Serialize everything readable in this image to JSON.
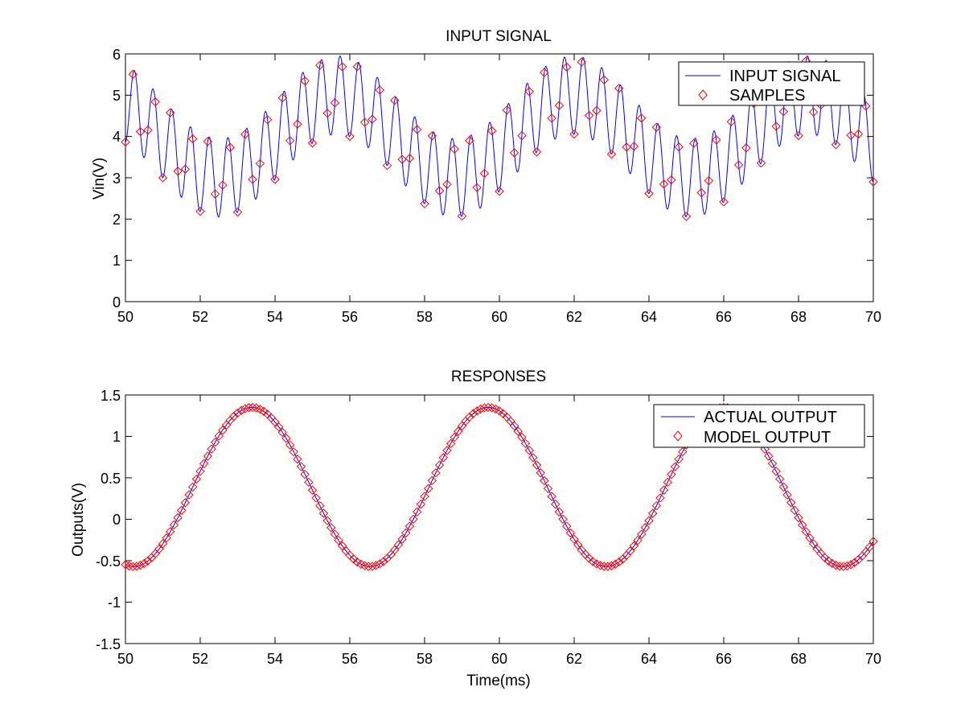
{
  "colors": {
    "line": "#0000ff",
    "marker": "#ff0000",
    "axes": "#000000",
    "background": "#ffffff"
  },
  "icons": {
    "line": "legend-line-icon",
    "marker": "diamond-marker-icon"
  },
  "chart_data": [
    {
      "type": "line",
      "title": "INPUT SIGNAL",
      "xlabel": "",
      "ylabel": "Vin(V)",
      "xlim": [
        50,
        70
      ],
      "ylim": [
        0,
        6
      ],
      "xticks": [
        "50",
        "52",
        "54",
        "56",
        "58",
        "60",
        "62",
        "64",
        "66",
        "68",
        "70"
      ],
      "yticks": [
        "0",
        "1",
        "2",
        "3",
        "4",
        "5",
        "6"
      ],
      "legend": {
        "position": "top-right",
        "entries": [
          "INPUT SIGNAL",
          "SAMPLES"
        ]
      },
      "series": [
        {
          "name": "INPUT SIGNAL",
          "style": "line",
          "model": "offset + a1*sin(2*pi*(t-50)/p1 + ph1) + a2*sin(2*pi*(t-50)/p2 + ph2)",
          "offset": 4.0,
          "a1": 1.0,
          "p1": 6.3,
          "ph1": 2.2,
          "a2": 0.95,
          "p2": 0.5,
          "ph2": -1.45
        },
        {
          "name": "SAMPLES",
          "style": "markers",
          "t_start": 50,
          "t_end": 70,
          "t_step": 0.2
        }
      ]
    },
    {
      "type": "line",
      "title": "RESPONSES",
      "xlabel": "Time(ms)",
      "ylabel": "Outputs(V)",
      "xlim": [
        50,
        70
      ],
      "ylim": [
        -1.5,
        1.5
      ],
      "xticks": [
        "50",
        "52",
        "54",
        "56",
        "58",
        "60",
        "62",
        "64",
        "66",
        "68",
        "70"
      ],
      "yticks": [
        "-1.5",
        "-1",
        "-0.5",
        "0",
        "0.5",
        "1",
        "1.5"
      ],
      "legend": {
        "position": "top-right",
        "entries": [
          "ACTUAL OUTPUT",
          "MODEL OUTPUT"
        ]
      },
      "series": [
        {
          "name": "ACTUAL OUTPUT",
          "style": "line",
          "model": "offset + amp*sin(2*pi*(t-t0)/period)",
          "offset": 0.39,
          "amp": 0.96,
          "period": 6.32,
          "t0": 51.8
        },
        {
          "name": "MODEL OUTPUT",
          "style": "markers",
          "t_start": 50,
          "t_end": 70,
          "t_step": 0.1
        }
      ]
    }
  ]
}
